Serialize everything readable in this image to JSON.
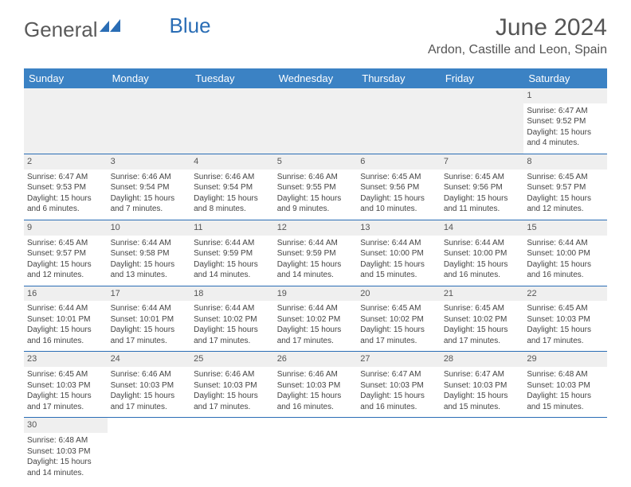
{
  "logo": {
    "general": "General",
    "blue": "Blue"
  },
  "title": "June 2024",
  "location": "Ardon, Castille and Leon, Spain",
  "header_bg": "#3b82c4",
  "days": [
    "Sunday",
    "Monday",
    "Tuesday",
    "Wednesday",
    "Thursday",
    "Friday",
    "Saturday"
  ],
  "weeks": [
    [
      null,
      null,
      null,
      null,
      null,
      null,
      {
        "n": "1",
        "sr": "Sunrise: 6:47 AM",
        "ss": "Sunset: 9:52 PM",
        "d1": "Daylight: 15 hours",
        "d2": "and 4 minutes."
      }
    ],
    [
      {
        "n": "2",
        "sr": "Sunrise: 6:47 AM",
        "ss": "Sunset: 9:53 PM",
        "d1": "Daylight: 15 hours",
        "d2": "and 6 minutes."
      },
      {
        "n": "3",
        "sr": "Sunrise: 6:46 AM",
        "ss": "Sunset: 9:54 PM",
        "d1": "Daylight: 15 hours",
        "d2": "and 7 minutes."
      },
      {
        "n": "4",
        "sr": "Sunrise: 6:46 AM",
        "ss": "Sunset: 9:54 PM",
        "d1": "Daylight: 15 hours",
        "d2": "and 8 minutes."
      },
      {
        "n": "5",
        "sr": "Sunrise: 6:46 AM",
        "ss": "Sunset: 9:55 PM",
        "d1": "Daylight: 15 hours",
        "d2": "and 9 minutes."
      },
      {
        "n": "6",
        "sr": "Sunrise: 6:45 AM",
        "ss": "Sunset: 9:56 PM",
        "d1": "Daylight: 15 hours",
        "d2": "and 10 minutes."
      },
      {
        "n": "7",
        "sr": "Sunrise: 6:45 AM",
        "ss": "Sunset: 9:56 PM",
        "d1": "Daylight: 15 hours",
        "d2": "and 11 minutes."
      },
      {
        "n": "8",
        "sr": "Sunrise: 6:45 AM",
        "ss": "Sunset: 9:57 PM",
        "d1": "Daylight: 15 hours",
        "d2": "and 12 minutes."
      }
    ],
    [
      {
        "n": "9",
        "sr": "Sunrise: 6:45 AM",
        "ss": "Sunset: 9:57 PM",
        "d1": "Daylight: 15 hours",
        "d2": "and 12 minutes."
      },
      {
        "n": "10",
        "sr": "Sunrise: 6:44 AM",
        "ss": "Sunset: 9:58 PM",
        "d1": "Daylight: 15 hours",
        "d2": "and 13 minutes."
      },
      {
        "n": "11",
        "sr": "Sunrise: 6:44 AM",
        "ss": "Sunset: 9:59 PM",
        "d1": "Daylight: 15 hours",
        "d2": "and 14 minutes."
      },
      {
        "n": "12",
        "sr": "Sunrise: 6:44 AM",
        "ss": "Sunset: 9:59 PM",
        "d1": "Daylight: 15 hours",
        "d2": "and 14 minutes."
      },
      {
        "n": "13",
        "sr": "Sunrise: 6:44 AM",
        "ss": "Sunset: 10:00 PM",
        "d1": "Daylight: 15 hours",
        "d2": "and 15 minutes."
      },
      {
        "n": "14",
        "sr": "Sunrise: 6:44 AM",
        "ss": "Sunset: 10:00 PM",
        "d1": "Daylight: 15 hours",
        "d2": "and 16 minutes."
      },
      {
        "n": "15",
        "sr": "Sunrise: 6:44 AM",
        "ss": "Sunset: 10:00 PM",
        "d1": "Daylight: 15 hours",
        "d2": "and 16 minutes."
      }
    ],
    [
      {
        "n": "16",
        "sr": "Sunrise: 6:44 AM",
        "ss": "Sunset: 10:01 PM",
        "d1": "Daylight: 15 hours",
        "d2": "and 16 minutes."
      },
      {
        "n": "17",
        "sr": "Sunrise: 6:44 AM",
        "ss": "Sunset: 10:01 PM",
        "d1": "Daylight: 15 hours",
        "d2": "and 17 minutes."
      },
      {
        "n": "18",
        "sr": "Sunrise: 6:44 AM",
        "ss": "Sunset: 10:02 PM",
        "d1": "Daylight: 15 hours",
        "d2": "and 17 minutes."
      },
      {
        "n": "19",
        "sr": "Sunrise: 6:44 AM",
        "ss": "Sunset: 10:02 PM",
        "d1": "Daylight: 15 hours",
        "d2": "and 17 minutes."
      },
      {
        "n": "20",
        "sr": "Sunrise: 6:45 AM",
        "ss": "Sunset: 10:02 PM",
        "d1": "Daylight: 15 hours",
        "d2": "and 17 minutes."
      },
      {
        "n": "21",
        "sr": "Sunrise: 6:45 AM",
        "ss": "Sunset: 10:02 PM",
        "d1": "Daylight: 15 hours",
        "d2": "and 17 minutes."
      },
      {
        "n": "22",
        "sr": "Sunrise: 6:45 AM",
        "ss": "Sunset: 10:03 PM",
        "d1": "Daylight: 15 hours",
        "d2": "and 17 minutes."
      }
    ],
    [
      {
        "n": "23",
        "sr": "Sunrise: 6:45 AM",
        "ss": "Sunset: 10:03 PM",
        "d1": "Daylight: 15 hours",
        "d2": "and 17 minutes."
      },
      {
        "n": "24",
        "sr": "Sunrise: 6:46 AM",
        "ss": "Sunset: 10:03 PM",
        "d1": "Daylight: 15 hours",
        "d2": "and 17 minutes."
      },
      {
        "n": "25",
        "sr": "Sunrise: 6:46 AM",
        "ss": "Sunset: 10:03 PM",
        "d1": "Daylight: 15 hours",
        "d2": "and 17 minutes."
      },
      {
        "n": "26",
        "sr": "Sunrise: 6:46 AM",
        "ss": "Sunset: 10:03 PM",
        "d1": "Daylight: 15 hours",
        "d2": "and 16 minutes."
      },
      {
        "n": "27",
        "sr": "Sunrise: 6:47 AM",
        "ss": "Sunset: 10:03 PM",
        "d1": "Daylight: 15 hours",
        "d2": "and 16 minutes."
      },
      {
        "n": "28",
        "sr": "Sunrise: 6:47 AM",
        "ss": "Sunset: 10:03 PM",
        "d1": "Daylight: 15 hours",
        "d2": "and 15 minutes."
      },
      {
        "n": "29",
        "sr": "Sunrise: 6:48 AM",
        "ss": "Sunset: 10:03 PM",
        "d1": "Daylight: 15 hours",
        "d2": "and 15 minutes."
      }
    ],
    [
      {
        "n": "30",
        "sr": "Sunrise: 6:48 AM",
        "ss": "Sunset: 10:03 PM",
        "d1": "Daylight: 15 hours",
        "d2": "and 14 minutes."
      },
      null,
      null,
      null,
      null,
      null,
      null
    ]
  ]
}
